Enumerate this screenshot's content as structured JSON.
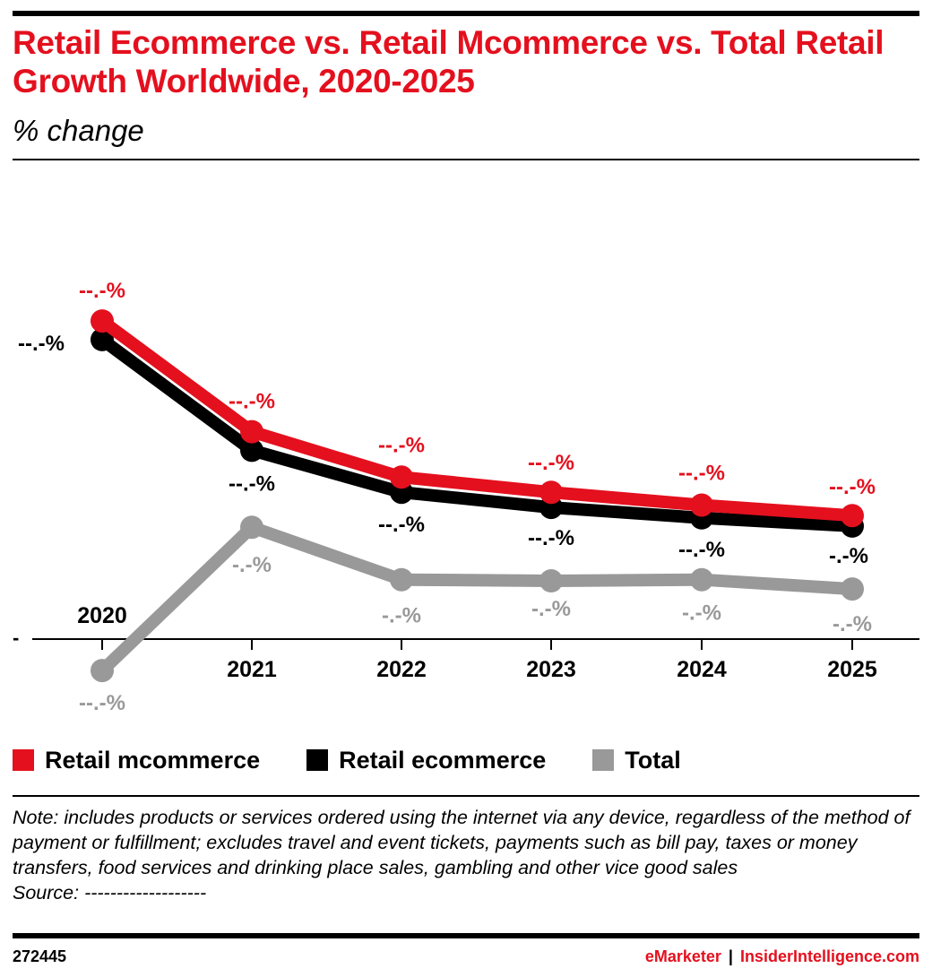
{
  "header": {
    "title": "Retail Ecommerce vs. Retail Mcommerce vs. Total Retail Growth Worldwide, 2020-2025",
    "subtitle": "% change"
  },
  "chart_data": {
    "type": "line",
    "categories": [
      "2020",
      "2021",
      "2022",
      "2023",
      "2024",
      "2025"
    ],
    "y_baseline_tick_label": "-",
    "ylim": [
      -3,
      28
    ],
    "grid": false,
    "legend_position": "bottom",
    "series": [
      {
        "name": "Retail mcommerce",
        "color": "#e4101e",
        "values": [
          27.3,
          17.8,
          13.9,
          12.6,
          11.5,
          10.6
        ],
        "labels": [
          "--.-%",
          "--.-%",
          "--.-%",
          "--.-%",
          "--.-%",
          "--.-%"
        ]
      },
      {
        "name": "Retail ecommerce",
        "color": "#000000",
        "values": [
          25.7,
          16.2,
          12.6,
          11.3,
          10.4,
          9.7
        ],
        "labels": [
          "--.-%",
          "--.-%",
          "--.-%",
          "--.-%",
          "--.-%",
          "-.-%"
        ]
      },
      {
        "name": "Total",
        "color": "#999999",
        "values": [
          -2.7,
          9.6,
          5.1,
          5.0,
          5.1,
          4.3
        ],
        "labels": [
          "--.-%",
          "-.-%",
          "-.-%",
          "-.-%",
          "-.-%",
          "-.-%"
        ]
      }
    ]
  },
  "legend": {
    "items": [
      {
        "label": "Retail mcommerce",
        "color": "#e4101e"
      },
      {
        "label": "Retail ecommerce",
        "color": "#000000"
      },
      {
        "label": "Total",
        "color": "#999999"
      }
    ]
  },
  "note": {
    "text": "Note: includes products or services ordered using the internet via any device, regardless of the method of payment or fulfillment; excludes travel and event tickets, payments such as bill pay, taxes or money transfers, food services and drinking place sales, gambling and other vice good sales",
    "source": "Source: -------------------"
  },
  "footer": {
    "id": "272445",
    "brand_left": "eMarketer",
    "separator": "|",
    "brand_right": "InsiderIntelligence.com"
  }
}
